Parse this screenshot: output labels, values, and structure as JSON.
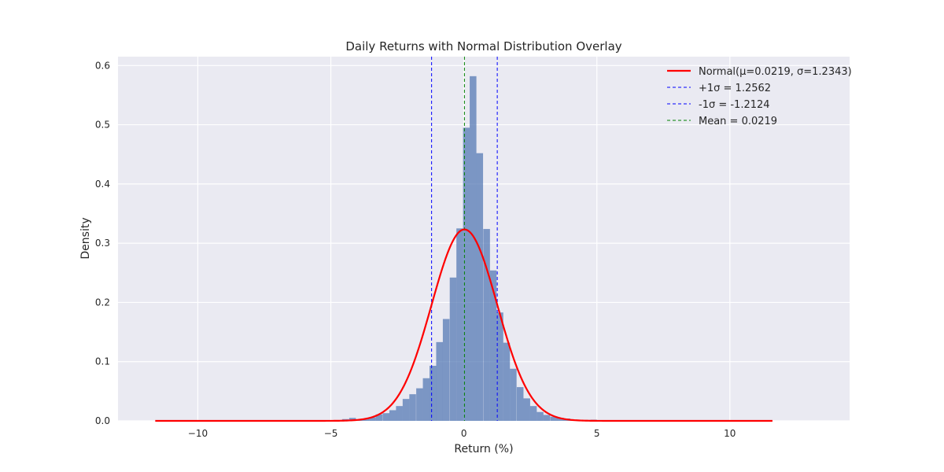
{
  "chart_data": {
    "type": "bar",
    "title": "Daily Returns with Normal Distribution Overlay",
    "xlabel": "Return (%)",
    "ylabel": "Density",
    "xlim": [
      -13,
      14.5
    ],
    "ylim": [
      0,
      0.615
    ],
    "grid": true,
    "legend_position": "top-right",
    "xticks": [
      -10,
      -5,
      0,
      5,
      10
    ],
    "xtick_labels": [
      "−10",
      "−5",
      "0",
      "5",
      "10"
    ],
    "yticks": [
      0.0,
      0.1,
      0.2,
      0.3,
      0.4,
      0.5,
      0.6
    ],
    "ytick_labels": [
      "0.0",
      "0.1",
      "0.2",
      "0.3",
      "0.4",
      "0.5",
      "0.6"
    ],
    "histogram": {
      "color": "#4C72B0",
      "bin_width": 0.252,
      "bins": [
        [
          -4.82,
          0.0012
        ],
        [
          -4.57,
          0.003
        ],
        [
          -4.31,
          0.005
        ],
        [
          -4.06,
          0.002
        ],
        [
          -3.81,
          0.004
        ],
        [
          -3.56,
          0.006
        ],
        [
          -3.31,
          0.011
        ],
        [
          -3.05,
          0.013
        ],
        [
          -2.8,
          0.018
        ],
        [
          -2.55,
          0.025
        ],
        [
          -2.3,
          0.037
        ],
        [
          -2.05,
          0.045
        ],
        [
          -1.79,
          0.055
        ],
        [
          -1.54,
          0.072
        ],
        [
          -1.29,
          0.093
        ],
        [
          -1.04,
          0.133
        ],
        [
          -0.79,
          0.172
        ],
        [
          -0.53,
          0.242
        ],
        [
          -0.28,
          0.325
        ],
        [
          -0.03,
          0.495
        ],
        [
          0.22,
          0.582
        ],
        [
          0.47,
          0.452
        ],
        [
          0.73,
          0.324
        ],
        [
          0.98,
          0.254
        ],
        [
          1.23,
          0.183
        ],
        [
          1.48,
          0.132
        ],
        [
          1.73,
          0.088
        ],
        [
          1.99,
          0.057
        ],
        [
          2.24,
          0.038
        ],
        [
          2.49,
          0.025
        ],
        [
          2.74,
          0.015
        ],
        [
          2.99,
          0.01
        ],
        [
          3.25,
          0.007
        ],
        [
          3.5,
          0.005
        ],
        [
          3.75,
          0.004
        ],
        [
          4.0,
          0.002
        ],
        [
          4.26,
          0.001
        ],
        [
          4.51,
          0.0015
        ],
        [
          4.76,
          0.002
        ]
      ]
    },
    "series": [
      {
        "name": "Normal(μ=0.0219, σ=1.2343)",
        "kind": "curve",
        "mu": 0.0219,
        "sigma": 1.2343,
        "x_range": [
          -11.6,
          11.6
        ],
        "color": "#ff0000",
        "style": "solid"
      },
      {
        "name": "+1σ = 1.2562",
        "kind": "vline",
        "x": 1.2562,
        "color": "#0000ff",
        "style": "dashed"
      },
      {
        "name": "-1σ = -1.2124",
        "kind": "vline",
        "x": -1.2124,
        "color": "#0000ff",
        "style": "dashed"
      },
      {
        "name": "Mean = 0.0219",
        "kind": "vline",
        "x": 0.0219,
        "color": "#008000",
        "style": "dashed"
      }
    ],
    "colors": {
      "plot_background": "#EAEAF2",
      "grid": "#ffffff",
      "text": "#262626"
    }
  }
}
